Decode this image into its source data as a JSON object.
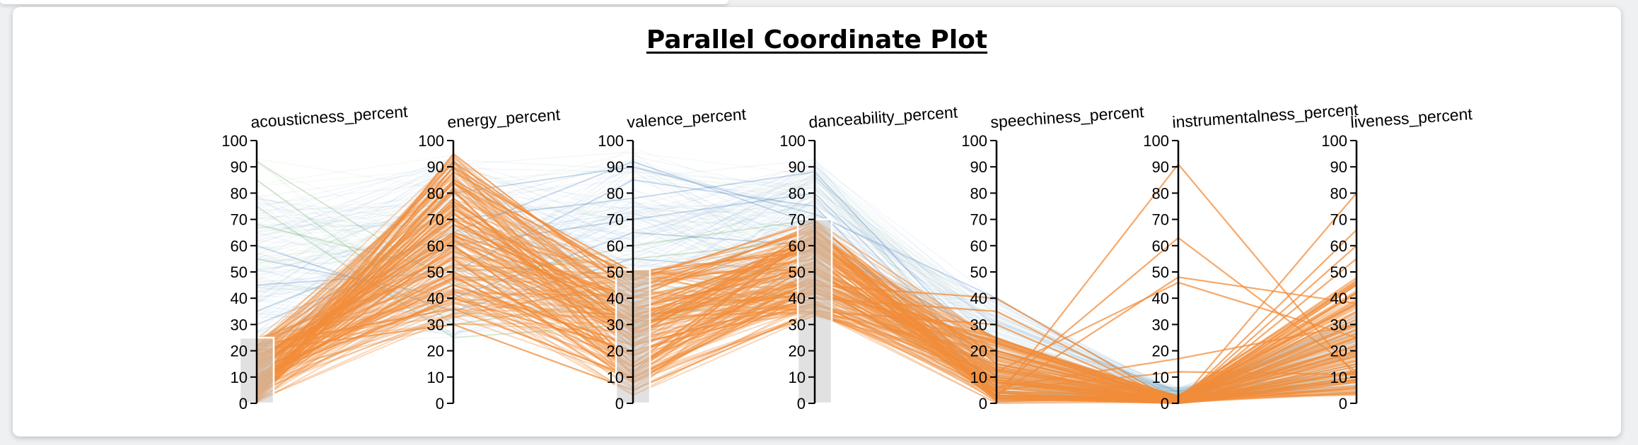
{
  "chart_data": {
    "type": "parallel-coordinates",
    "title": "Parallel Coordinate Plot",
    "axes": [
      "acousticness_percent",
      "energy_percent",
      "valence_percent",
      "danceability_percent",
      "speechiness_percent",
      "instrumentalness_percent",
      "liveness_percent"
    ],
    "ylim": [
      0,
      100
    ],
    "ticks": [
      0,
      10,
      20,
      30,
      40,
      50,
      60,
      70,
      80,
      90,
      100
    ],
    "brushes": [
      {
        "axis": "acousticness_percent",
        "range": [
          0,
          25
        ]
      },
      {
        "axis": "valence_percent",
        "range": [
          0,
          51
        ]
      },
      {
        "axis": "danceability_percent",
        "range": [
          0,
          70
        ]
      }
    ],
    "colors": {
      "selected": "#f28c3a",
      "blue": "#5b8fc7",
      "green": "#7dbb73",
      "brush_fill": "#c8c8c8",
      "brush_stroke": "#ffffff"
    },
    "series": [
      {
        "values": [
          4,
          60,
          12,
          65,
          6,
          0,
          12
        ],
        "color": "orange"
      },
      {
        "values": [
          8,
          92,
          45,
          55,
          3,
          0,
          28
        ],
        "color": "orange"
      },
      {
        "values": [
          12,
          70,
          30,
          62,
          10,
          0,
          9
        ],
        "color": "orange"
      },
      {
        "values": [
          2,
          85,
          48,
          60,
          4,
          0,
          60
        ],
        "color": "orange"
      },
      {
        "values": [
          18,
          55,
          8,
          45,
          40,
          0,
          15
        ],
        "color": "orange"
      },
      {
        "values": [
          6,
          78,
          25,
          66,
          2,
          91,
          10
        ],
        "color": "orange"
      },
      {
        "values": [
          10,
          40,
          20,
          38,
          8,
          0,
          35
        ],
        "color": "orange"
      },
      {
        "values": [
          14,
          65,
          40,
          68,
          15,
          0,
          18
        ],
        "color": "orange"
      },
      {
        "values": [
          3,
          88,
          50,
          58,
          5,
          63,
          12
        ],
        "color": "orange"
      },
      {
        "values": [
          20,
          30,
          5,
          35,
          30,
          0,
          8
        ],
        "color": "orange"
      },
      {
        "values": [
          7,
          74,
          35,
          63,
          3,
          0,
          80
        ],
        "color": "orange"
      },
      {
        "values": [
          9,
          50,
          18,
          50,
          12,
          46,
          25
        ],
        "color": "orange"
      },
      {
        "values": [
          1,
          95,
          42,
          67,
          2,
          0,
          45
        ],
        "color": "orange"
      },
      {
        "values": [
          16,
          62,
          28,
          54,
          20,
          0,
          14
        ],
        "color": "orange"
      },
      {
        "values": [
          5,
          81,
          15,
          64,
          6,
          17,
          30
        ],
        "color": "orange"
      },
      {
        "values": [
          11,
          45,
          22,
          40,
          35,
          0,
          6
        ],
        "color": "orange"
      },
      {
        "values": [
          13,
          68,
          38,
          59,
          4,
          0,
          55
        ],
        "color": "orange"
      },
      {
        "values": [
          2,
          90,
          47,
          69,
          8,
          0,
          20
        ],
        "color": "orange"
      },
      {
        "values": [
          22,
          36,
          10,
          42,
          25,
          0,
          10
        ],
        "color": "orange"
      },
      {
        "values": [
          6,
          72,
          33,
          57,
          3,
          48,
          38
        ],
        "color": "orange"
      },
      {
        "values": [
          15,
          58,
          26,
          61,
          18,
          0,
          16
        ],
        "color": "orange"
      },
      {
        "values": [
          4,
          84,
          44,
          66,
          2,
          0,
          66
        ],
        "color": "orange"
      },
      {
        "values": [
          9,
          48,
          14,
          47,
          14,
          0,
          22
        ],
        "color": "orange"
      },
      {
        "values": [
          17,
          64,
          36,
          52,
          9,
          0,
          42
        ],
        "color": "orange"
      },
      {
        "values": [
          3,
          77,
          31,
          63,
          5,
          12,
          11
        ],
        "color": "orange"
      },
      {
        "values": [
          30,
          60,
          70,
          80,
          10,
          0,
          20
        ],
        "color": "blue"
      },
      {
        "values": [
          45,
          50,
          85,
          75,
          5,
          0,
          12
        ],
        "color": "blue"
      },
      {
        "values": [
          10,
          80,
          90,
          72,
          40,
          0,
          10
        ],
        "color": "blue"
      },
      {
        "values": [
          55,
          40,
          65,
          60,
          25,
          0,
          18
        ],
        "color": "blue"
      },
      {
        "values": [
          20,
          70,
          78,
          88,
          15,
          0,
          9
        ],
        "color": "blue"
      },
      {
        "values": [
          60,
          35,
          55,
          50,
          8,
          0,
          14
        ],
        "color": "blue"
      },
      {
        "values": [
          35,
          65,
          92,
          68,
          6,
          0,
          22
        ],
        "color": "blue"
      },
      {
        "values": [
          85,
          30,
          40,
          55,
          4,
          0,
          11
        ],
        "color": "green"
      },
      {
        "values": [
          92,
          45,
          60,
          70,
          3,
          0,
          9
        ],
        "color": "green"
      },
      {
        "values": [
          75,
          25,
          30,
          45,
          5,
          0,
          15
        ],
        "color": "green"
      },
      {
        "values": [
          68,
          50,
          55,
          62,
          7,
          0,
          12
        ],
        "color": "green"
      }
    ]
  }
}
